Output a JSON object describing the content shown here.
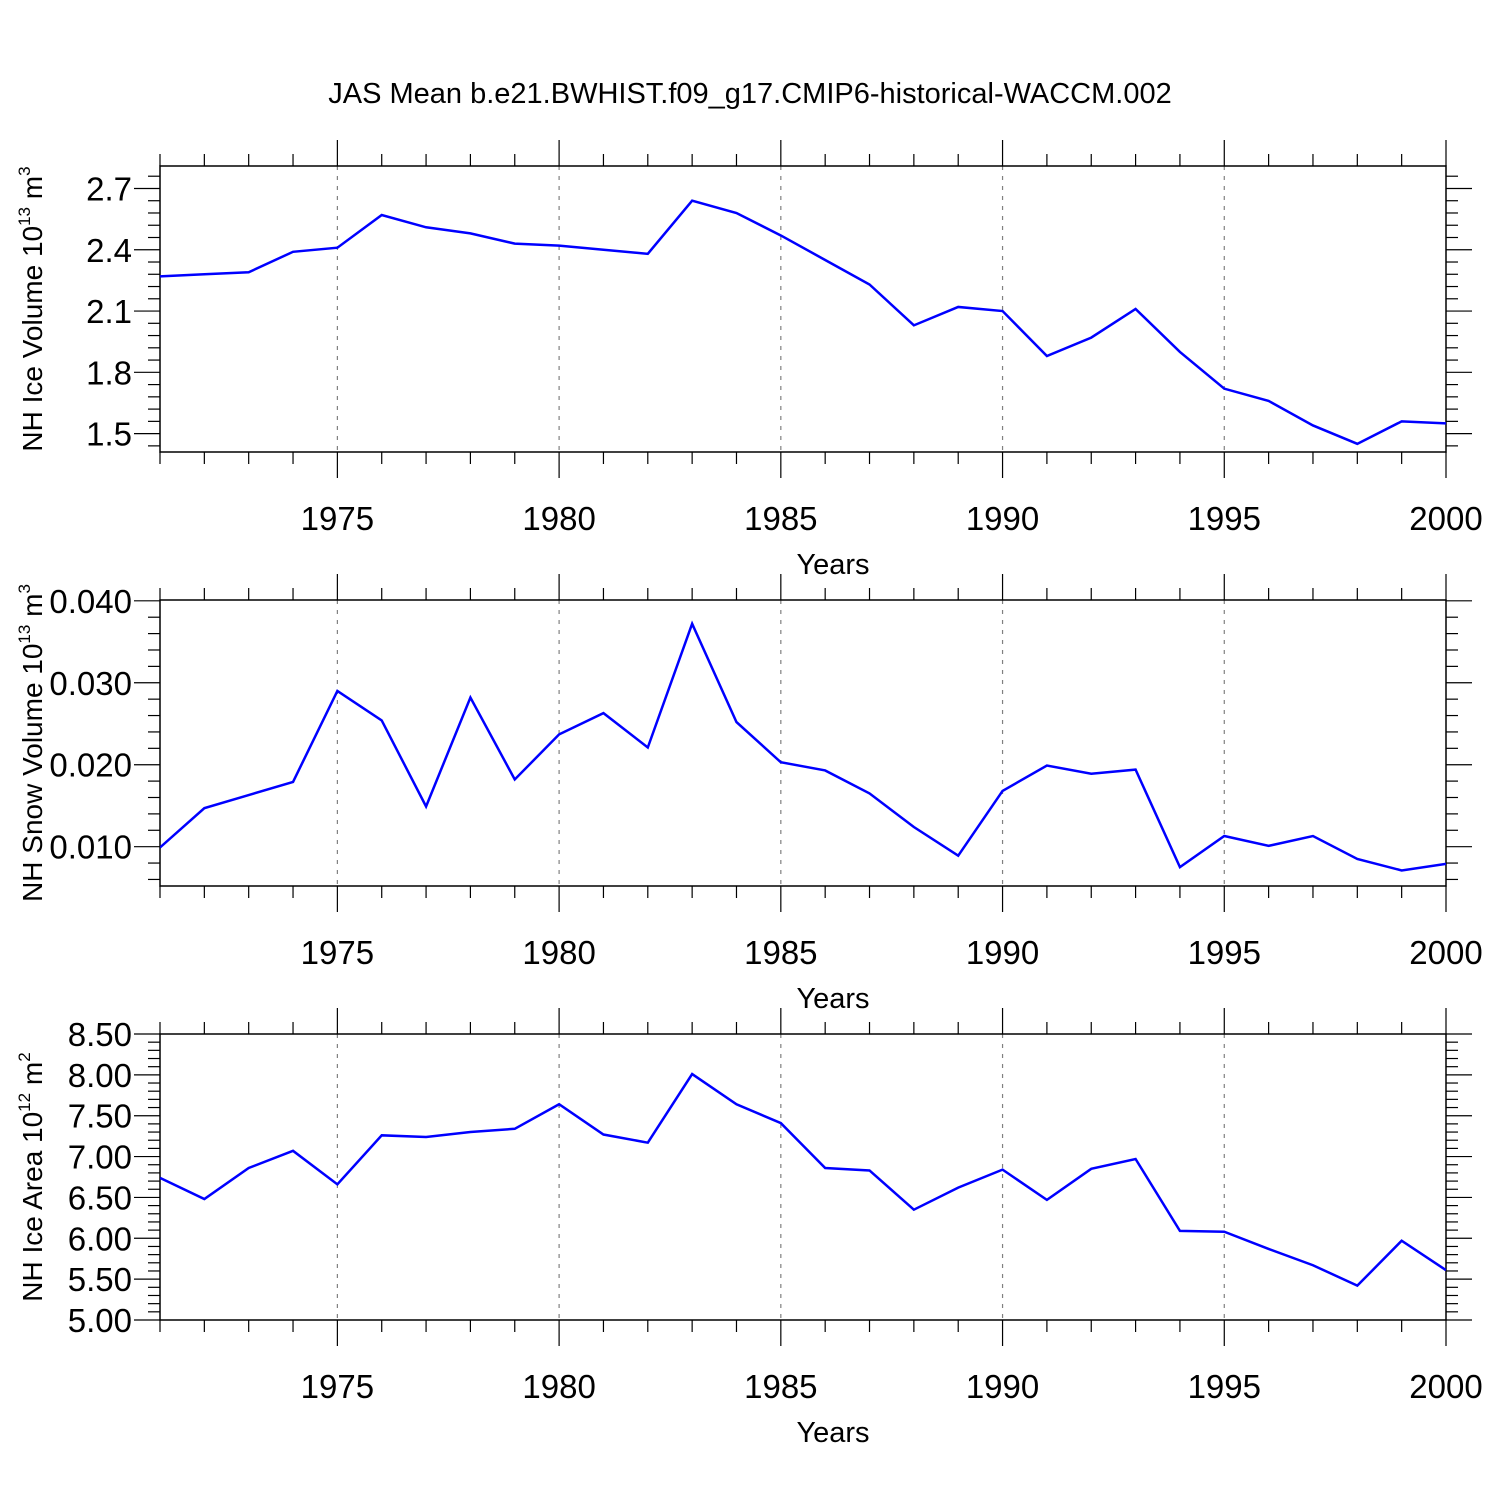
{
  "title": "JAS Mean b.e21.BWHIST.f09_g17.CMIP6-historical-WACCM.002",
  "colors": {
    "line": "#0000ff",
    "axis": "#000000",
    "grid": "#808080"
  },
  "chart_data": [
    {
      "type": "line",
      "ylabel_base": "NH Ice Volume 10",
      "ylabel_exp": "13",
      "ylabel_unit": " m",
      "ylabel_unit_exp": "3",
      "xlabel": "Years",
      "xlim": [
        1971,
        2000
      ],
      "ylim": [
        1.41,
        2.81
      ],
      "yticks": [
        1.5,
        1.8,
        2.1,
        2.4,
        2.7
      ],
      "ytick_labels": [
        "1.5",
        "1.8",
        "2.1",
        "2.4",
        "2.7"
      ],
      "xticks": [
        1975,
        1980,
        1985,
        1990,
        1995,
        2000
      ],
      "xtick_labels": [
        "1975",
        "1980",
        "1985",
        "1990",
        "1995",
        "2000"
      ],
      "grid_x": true,
      "series": [
        {
          "x": [
            1971,
            1972,
            1973,
            1974,
            1975,
            1976,
            1977,
            1978,
            1979,
            1980,
            1981,
            1982,
            1983,
            1984,
            1985,
            1986,
            1987,
            1988,
            1989,
            1990,
            1991,
            1992,
            1993,
            1994,
            1995,
            1996,
            1997,
            1998,
            1999,
            2000
          ],
          "values": [
            2.27,
            2.28,
            2.29,
            2.39,
            2.41,
            2.57,
            2.51,
            2.48,
            2.43,
            2.42,
            2.4,
            2.38,
            2.64,
            2.58,
            2.47,
            2.35,
            2.23,
            2.03,
            2.12,
            2.1,
            1.88,
            1.97,
            2.11,
            1.9,
            1.72,
            1.66,
            1.54,
            1.45,
            1.56,
            1.55
          ]
        }
      ]
    },
    {
      "type": "line",
      "ylabel_base": "NH Snow Volume 10",
      "ylabel_exp": "13",
      "ylabel_unit": " m",
      "ylabel_unit_exp": "3",
      "xlabel": "Years",
      "xlim": [
        1971,
        2000
      ],
      "ylim": [
        0.0052,
        0.0401
      ],
      "yticks": [
        0.01,
        0.02,
        0.03,
        0.04
      ],
      "ytick_labels": [
        "0.010",
        "0.020",
        "0.030",
        "0.040"
      ],
      "xticks": [
        1975,
        1980,
        1985,
        1990,
        1995,
        2000
      ],
      "xtick_labels": [
        "1975",
        "1980",
        "1985",
        "1990",
        "1995",
        "2000"
      ],
      "grid_x": true,
      "series": [
        {
          "x": [
            1971,
            1972,
            1973,
            1974,
            1975,
            1976,
            1977,
            1978,
            1979,
            1980,
            1981,
            1982,
            1983,
            1984,
            1985,
            1986,
            1987,
            1988,
            1989,
            1990,
            1991,
            1992,
            1993,
            1994,
            1995,
            1996,
            1997,
            1998,
            1999,
            2000
          ],
          "values": [
            0.0099,
            0.0147,
            0.0163,
            0.0179,
            0.029,
            0.0254,
            0.0149,
            0.0282,
            0.0182,
            0.0237,
            0.0263,
            0.0221,
            0.0372,
            0.0252,
            0.0203,
            0.0193,
            0.0165,
            0.0124,
            0.0089,
            0.0168,
            0.0199,
            0.0189,
            0.0194,
            0.0075,
            0.0113,
            0.0101,
            0.0113,
            0.0085,
            0.0071,
            0.0079
          ]
        }
      ]
    },
    {
      "type": "line",
      "ylabel_base": "NH Ice Area 10",
      "ylabel_exp": "12",
      "ylabel_unit": " m",
      "ylabel_unit_exp": "2",
      "xlabel": "Years",
      "xlim": [
        1971,
        2000
      ],
      "ylim": [
        5.0,
        8.5
      ],
      "yticks": [
        5.0,
        5.5,
        6.0,
        6.5,
        7.0,
        7.5,
        8.0,
        8.5
      ],
      "ytick_labels": [
        "5.00",
        "5.50",
        "6.00",
        "6.50",
        "7.00",
        "7.50",
        "8.00",
        "8.50"
      ],
      "xticks": [
        1975,
        1980,
        1985,
        1990,
        1995,
        2000
      ],
      "xtick_labels": [
        "1975",
        "1980",
        "1985",
        "1990",
        "1995",
        "2000"
      ],
      "grid_x": true,
      "series": [
        {
          "x": [
            1971,
            1972,
            1973,
            1974,
            1975,
            1976,
            1977,
            1978,
            1979,
            1980,
            1981,
            1982,
            1983,
            1984,
            1985,
            1986,
            1987,
            1988,
            1989,
            1990,
            1991,
            1992,
            1993,
            1994,
            1995,
            1996,
            1997,
            1998,
            1999,
            2000
          ],
          "values": [
            6.74,
            6.48,
            6.86,
            7.07,
            6.66,
            7.26,
            7.24,
            7.3,
            7.34,
            7.64,
            7.27,
            7.17,
            8.01,
            7.64,
            7.41,
            6.86,
            6.83,
            6.35,
            6.62,
            6.84,
            6.47,
            6.85,
            6.97,
            6.09,
            6.08,
            5.87,
            5.67,
            5.42,
            5.97,
            5.61
          ]
        }
      ]
    }
  ]
}
